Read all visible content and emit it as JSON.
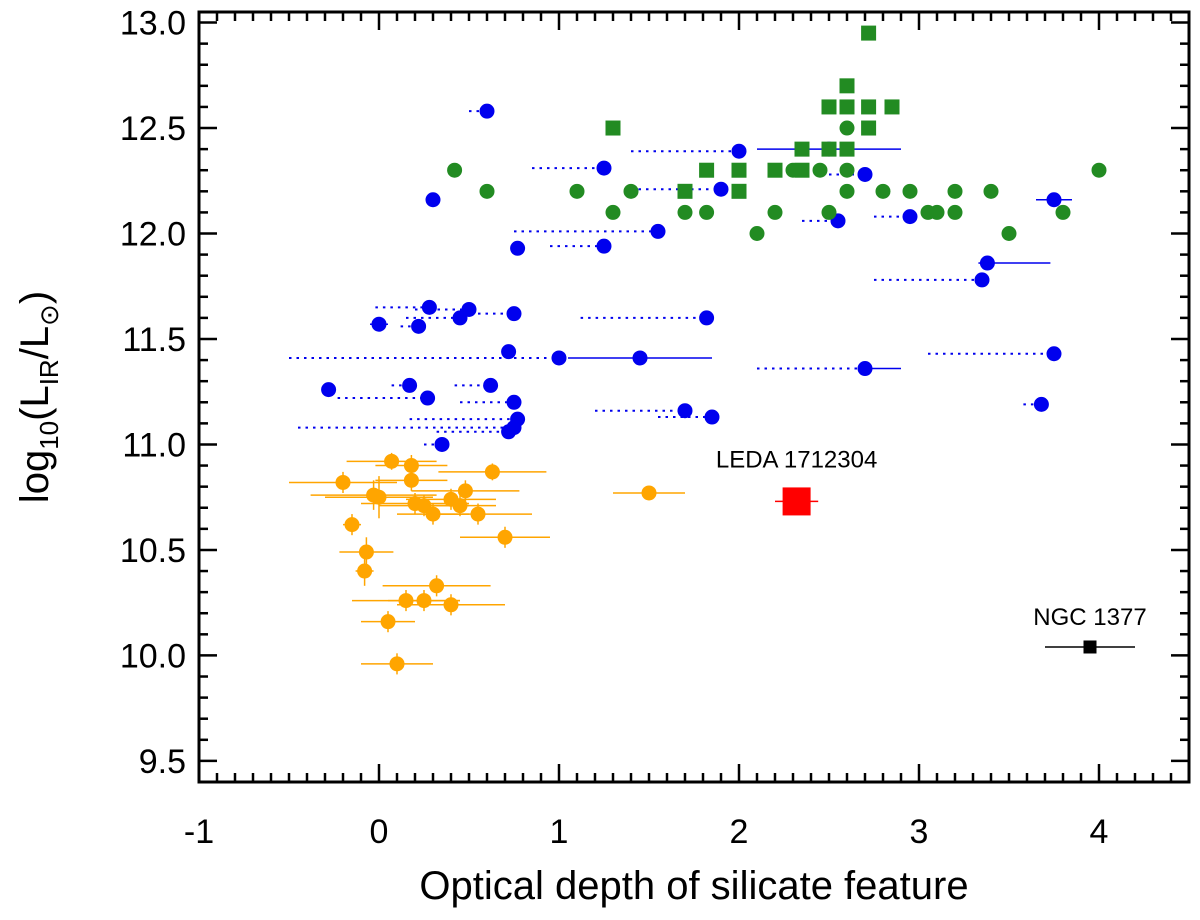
{
  "chart_data": {
    "type": "scatter",
    "xlabel": "Optical depth of silicate feature",
    "ylabel": "log10(LIR/L⊙)",
    "ylabel_parts": {
      "base": "log",
      "sub1": "10",
      "mid": "(L",
      "sub2": "IR",
      "mid2": "/L",
      "sub3": "⊙",
      "end": ")"
    },
    "xlim": [
      -1,
      4.5
    ],
    "ylim": [
      9.4,
      13.05
    ],
    "xticks": [
      -1,
      0,
      1,
      2,
      3,
      4
    ],
    "xtick_labels": [
      "-1",
      "0",
      "1",
      "2",
      "3",
      "4"
    ],
    "yticks": [
      9.5,
      10.0,
      10.5,
      11.0,
      11.5,
      12.0,
      12.5,
      13.0
    ],
    "ytick_labels": [
      "9.5",
      "10.0",
      "10.5",
      "11.0",
      "11.5",
      "12.0",
      "12.5",
      "13.0"
    ],
    "series": [
      {
        "name": "blue circles",
        "marker": "circle",
        "color": "#0000ee",
        "points": [
          {
            "x": 0.6,
            "y": 12.58,
            "xerr_left_dotted": 0.1
          },
          {
            "x": 0.3,
            "y": 12.16
          },
          {
            "x": 1.25,
            "y": 12.31,
            "xerr_left_dotted": 0.4
          },
          {
            "x": 2.0,
            "y": 12.39,
            "xerr_left_dotted": 0.6
          },
          {
            "x": 1.9,
            "y": 12.21,
            "xerr_left_dotted": 0.5
          },
          {
            "x": 2.5,
            "y": 12.4,
            "xerr_left": 0.4,
            "xerr_right": 0.4
          },
          {
            "x": 2.7,
            "y": 12.28,
            "xerr_left_dotted": 0.2
          },
          {
            "x": 2.55,
            "y": 12.06,
            "xerr_left_dotted": 0.2
          },
          {
            "x": 2.95,
            "y": 12.08,
            "xerr_left_dotted": 0.2
          },
          {
            "x": 3.75,
            "y": 12.16,
            "xerr_left": 0.1,
            "xerr_right": 0.1
          },
          {
            "x": 1.55,
            "y": 12.01,
            "xerr_left_dotted": 0.8
          },
          {
            "x": 1.25,
            "y": 11.94,
            "xerr_left_dotted": 0.3
          },
          {
            "x": 0.77,
            "y": 11.93
          },
          {
            "x": 3.38,
            "y": 11.86,
            "xerr_left": 0.05,
            "xerr_right": 0.35
          },
          {
            "x": 3.35,
            "y": 11.78,
            "xerr_left_dotted": 0.6
          },
          {
            "x": 0.0,
            "y": 11.57,
            "xerr_left": 0.05,
            "xerr_right": 0.05
          },
          {
            "x": 0.22,
            "y": 11.56,
            "xerr_left_dotted": 0.1
          },
          {
            "x": 0.28,
            "y": 11.65,
            "xerr_left_dotted": 0.3
          },
          {
            "x": 0.5,
            "y": 11.64,
            "xerr_left_dotted": 0.3
          },
          {
            "x": 0.45,
            "y": 11.6,
            "xerr_left_dotted": 0.3
          },
          {
            "x": 0.75,
            "y": 11.62,
            "xerr_left_dotted": 0.2
          },
          {
            "x": 1.82,
            "y": 11.6,
            "xerr_left_dotted": 0.7
          },
          {
            "x": 0.72,
            "y": 11.44
          },
          {
            "x": 1.0,
            "y": 11.41,
            "xerr_left_dotted": 1.5
          },
          {
            "x": 1.45,
            "y": 11.41,
            "xerr_left": 0.4,
            "xerr_right": 0.4
          },
          {
            "x": 2.7,
            "y": 11.36,
            "xerr_left_dotted": 0.6,
            "xerr_right": 0.2
          },
          {
            "x": 3.75,
            "y": 11.43,
            "xerr_left_dotted": 0.7
          },
          {
            "x": -0.28,
            "y": 11.26
          },
          {
            "x": 0.17,
            "y": 11.28,
            "xerr_left_dotted": 0.1
          },
          {
            "x": 0.27,
            "y": 11.22,
            "xerr_left_dotted": 0.5
          },
          {
            "x": 0.62,
            "y": 11.28,
            "xerr_left_dotted": 0.2
          },
          {
            "x": 0.75,
            "y": 11.2,
            "xerr_left_dotted": 0.3
          },
          {
            "x": 1.7,
            "y": 11.16,
            "xerr_left_dotted": 0.5
          },
          {
            "x": 1.85,
            "y": 11.13,
            "xerr_left_dotted": 0.3
          },
          {
            "x": 3.68,
            "y": 11.19,
            "xerr_left_dotted": 0.1
          },
          {
            "x": 0.77,
            "y": 11.12,
            "xerr_left_dotted": 0.6
          },
          {
            "x": 0.75,
            "y": 11.08,
            "xerr_left_dotted": 1.2
          },
          {
            "x": 0.72,
            "y": 11.06,
            "xerr_left_dotted": 0.4
          },
          {
            "x": 0.35,
            "y": 11.0,
            "xerr_left_dotted": 0.1
          }
        ]
      },
      {
        "name": "green circles",
        "marker": "circle",
        "color": "#228b22",
        "points": [
          {
            "x": 0.42,
            "y": 12.3
          },
          {
            "x": 0.6,
            "y": 12.2
          },
          {
            "x": 1.1,
            "y": 12.2
          },
          {
            "x": 1.3,
            "y": 12.1
          },
          {
            "x": 1.4,
            "y": 12.2
          },
          {
            "x": 1.7,
            "y": 12.1
          },
          {
            "x": 1.82,
            "y": 12.1
          },
          {
            "x": 2.1,
            "y": 12.0
          },
          {
            "x": 2.2,
            "y": 12.1
          },
          {
            "x": 2.3,
            "y": 12.3
          },
          {
            "x": 2.45,
            "y": 12.3
          },
          {
            "x": 2.5,
            "y": 12.1
          },
          {
            "x": 2.6,
            "y": 12.5
          },
          {
            "x": 2.6,
            "y": 12.3
          },
          {
            "x": 2.6,
            "y": 12.2
          },
          {
            "x": 2.8,
            "y": 12.2
          },
          {
            "x": 2.95,
            "y": 12.2
          },
          {
            "x": 3.05,
            "y": 12.1
          },
          {
            "x": 3.1,
            "y": 12.1
          },
          {
            "x": 3.2,
            "y": 12.2
          },
          {
            "x": 3.2,
            "y": 12.1
          },
          {
            "x": 3.4,
            "y": 12.2
          },
          {
            "x": 3.5,
            "y": 12.0
          },
          {
            "x": 3.8,
            "y": 12.1
          },
          {
            "x": 4.0,
            "y": 12.3
          }
        ]
      },
      {
        "name": "green squares",
        "marker": "square",
        "color": "#228b22",
        "points": [
          {
            "x": 1.3,
            "y": 12.5
          },
          {
            "x": 1.7,
            "y": 12.2
          },
          {
            "x": 1.82,
            "y": 12.3
          },
          {
            "x": 2.0,
            "y": 12.3
          },
          {
            "x": 2.0,
            "y": 12.2
          },
          {
            "x": 2.2,
            "y": 12.3
          },
          {
            "x": 2.35,
            "y": 12.4
          },
          {
            "x": 2.35,
            "y": 12.3
          },
          {
            "x": 2.5,
            "y": 12.6
          },
          {
            "x": 2.5,
            "y": 12.4
          },
          {
            "x": 2.6,
            "y": 12.7
          },
          {
            "x": 2.6,
            "y": 12.6
          },
          {
            "x": 2.6,
            "y": 12.4
          },
          {
            "x": 2.72,
            "y": 12.95
          },
          {
            "x": 2.72,
            "y": 12.6
          },
          {
            "x": 2.72,
            "y": 12.5
          },
          {
            "x": 2.85,
            "y": 12.6
          }
        ]
      },
      {
        "name": "orange circles",
        "marker": "circle",
        "color": "#ffa500",
        "points": [
          {
            "x": -0.2,
            "y": 10.82,
            "xerr": 0.3,
            "yerr": 0.05
          },
          {
            "x": -0.03,
            "y": 10.76,
            "xerr": 0.35,
            "yerr": 0.07
          },
          {
            "x": 0.0,
            "y": 10.75,
            "xerr": 0.3,
            "yerr": 0.1
          },
          {
            "x": 0.07,
            "y": 10.92,
            "xerr": 0.25,
            "yerr": 0.04
          },
          {
            "x": 0.18,
            "y": 10.9,
            "xerr": 0.2,
            "yerr": 0.05
          },
          {
            "x": 0.18,
            "y": 10.83,
            "xerr": 0.2,
            "yerr": 0.05
          },
          {
            "x": 0.2,
            "y": 10.72,
            "xerr": 0.3,
            "yerr": 0.05
          },
          {
            "x": 0.25,
            "y": 10.71,
            "xerr": 0.25,
            "yerr": 0.05
          },
          {
            "x": 0.3,
            "y": 10.67,
            "xerr": 0.2,
            "yerr": 0.05
          },
          {
            "x": 0.4,
            "y": 10.74,
            "xerr": 0.25,
            "yerr": 0.05
          },
          {
            "x": 0.45,
            "y": 10.71,
            "xerr": 0.2,
            "yerr": 0.05
          },
          {
            "x": 0.48,
            "y": 10.78,
            "xerr": 0.3,
            "yerr": 0.05
          },
          {
            "x": 0.55,
            "y": 10.67,
            "xerr": 0.3,
            "yerr": 0.05
          },
          {
            "x": 0.63,
            "y": 10.87,
            "xerr": 0.3,
            "yerr": 0.04
          },
          {
            "x": 0.7,
            "y": 10.56,
            "xerr": 0.25,
            "yerr": 0.05
          },
          {
            "x": 1.5,
            "y": 10.77,
            "xerr": 0.2,
            "yerr": 0.03
          },
          {
            "x": -0.15,
            "y": 10.62,
            "xerr": 0.05,
            "yerr": 0.05
          },
          {
            "x": -0.07,
            "y": 10.49,
            "xerr": 0.15,
            "yerr": 0.07
          },
          {
            "x": -0.08,
            "y": 10.4,
            "xerr": 0.05,
            "yerr": 0.07
          },
          {
            "x": 0.15,
            "y": 10.26,
            "xerr": 0.3,
            "yerr": 0.05
          },
          {
            "x": 0.25,
            "y": 10.26,
            "xerr": 0.2,
            "yerr": 0.05
          },
          {
            "x": 0.32,
            "y": 10.33,
            "xerr": 0.3,
            "yerr": 0.05
          },
          {
            "x": 0.4,
            "y": 10.24,
            "xerr": 0.3,
            "yerr": 0.05
          },
          {
            "x": 0.05,
            "y": 10.16,
            "xerr": 0.15,
            "yerr": 0.05
          },
          {
            "x": 0.1,
            "y": 9.96,
            "xerr": 0.2,
            "yerr": 0.05
          }
        ]
      }
    ],
    "highlighted": [
      {
        "label": "LEDA 1712304",
        "marker": "square",
        "color": "#ff0000",
        "x": 2.32,
        "y": 10.73,
        "xerr": 0.12,
        "yerr": 0.05
      },
      {
        "label": "NGC 1377",
        "marker": "square",
        "color": "#000000",
        "x": 3.95,
        "y": 10.04,
        "xerr": 0.25
      }
    ]
  }
}
